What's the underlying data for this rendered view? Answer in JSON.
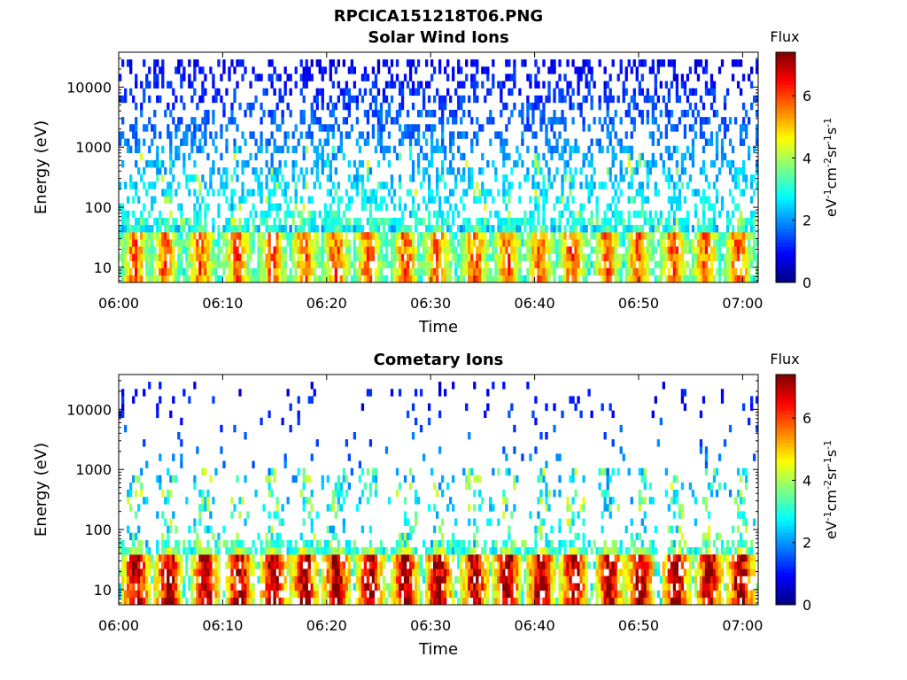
{
  "figure": {
    "title": "RPCICA151218T06.PNG"
  },
  "colorbar": {
    "label": "Flux",
    "unit": "eV^-1cm^-2sr^-1s^-1",
    "ticks": [
      "0",
      "2",
      "4",
      "6"
    ],
    "range": [
      0,
      7.4
    ],
    "colormap": "jet"
  },
  "chart_data": [
    {
      "type": "heatmap",
      "title": "Solar Wind Ions",
      "xlabel": "Time",
      "ylabel": "Energy (eV)",
      "x_ticks": [
        "06:00",
        "06:10",
        "06:20",
        "06:30",
        "06:40",
        "06:50",
        "07:00"
      ],
      "y_ticks": [
        "10",
        "100",
        "1000",
        "10000"
      ],
      "x_range_minutes": [
        0,
        61.5
      ],
      "y_range": [
        5.6,
        38000
      ],
      "y_scale": "log",
      "value_label": "Flux",
      "value_range": [
        0,
        7.4
      ],
      "burst_times_minutes": [
        1.6,
        4.5,
        7.9,
        11.4,
        14.8,
        17.9,
        20.9,
        24.0,
        27.6,
        30.7,
        34.3,
        37.4,
        40.5,
        43.6,
        47.0,
        50.0,
        53.4,
        56.4,
        59.6
      ],
      "burst_peak_flux": 5.8,
      "background_energy_range": [
        10,
        30000
      ],
      "background_flux_range": [
        0.8,
        3.5
      ]
    },
    {
      "type": "heatmap",
      "title": "Cometary Ions",
      "xlabel": "Time",
      "ylabel": "Energy (eV)",
      "x_ticks": [
        "06:00",
        "06:10",
        "06:20",
        "06:30",
        "06:40",
        "06:50",
        "07:00"
      ],
      "y_ticks": [
        "10",
        "100",
        "1000",
        "10000"
      ],
      "x_range_minutes": [
        0,
        61.5
      ],
      "y_range": [
        5.6,
        38000
      ],
      "y_scale": "log",
      "value_label": "Flux",
      "value_range": [
        0,
        7.4
      ],
      "burst_times_minutes": [
        1.7,
        4.8,
        8.3,
        11.6,
        14.9,
        17.9,
        21.0,
        24.1,
        27.6,
        30.8,
        34.3,
        37.4,
        40.6,
        43.8,
        47.2,
        50.2,
        53.6,
        56.8,
        59.8
      ],
      "burst_peak_flux": 7.2,
      "background_energy_range": [
        20,
        30000
      ],
      "background_flux_range": [
        0.8,
        3.2
      ]
    }
  ]
}
